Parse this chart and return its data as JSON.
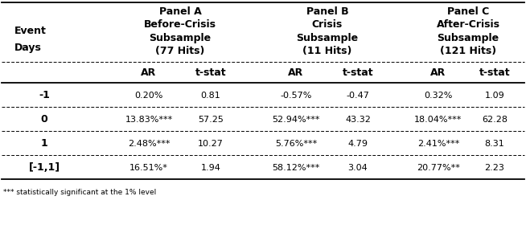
{
  "footnote": "*** statistically significant at the 1% level",
  "panel_headers": [
    "Panel A",
    "Panel B",
    "Panel C"
  ],
  "panel_subheaders": [
    [
      "Before-Crisis",
      "Subsample",
      "(77 Hits)"
    ],
    [
      "Crisis",
      "Subsample",
      "(11 Hits)"
    ],
    [
      "After-Crisis",
      "Subsample",
      "(121 Hits)"
    ]
  ],
  "col_headers": [
    "AR",
    "t-stat",
    "AR",
    "t-stat",
    "AR",
    "t-stat"
  ],
  "row_labels": [
    "-1",
    "0",
    "1",
    "[-1,1]"
  ],
  "data": [
    [
      "0.20%",
      "0.81",
      "-0.57%",
      "-0.47",
      "0.32%",
      "1.09"
    ],
    [
      "13.83%***",
      "57.25",
      "52.94%***",
      "43.32",
      "18.04%***",
      "62.28"
    ],
    [
      "2.48%***",
      "10.27",
      "5.76%***",
      "4.79",
      "2.41%***",
      "8.31"
    ],
    [
      "16.51%*",
      "1.94",
      "58.12%***",
      "3.04",
      "20.77%**",
      "2.23"
    ]
  ],
  "bg_color": "#ffffff",
  "text_color": "#000000",
  "header_fontsize": 8.5,
  "data_fontsize": 8.5
}
